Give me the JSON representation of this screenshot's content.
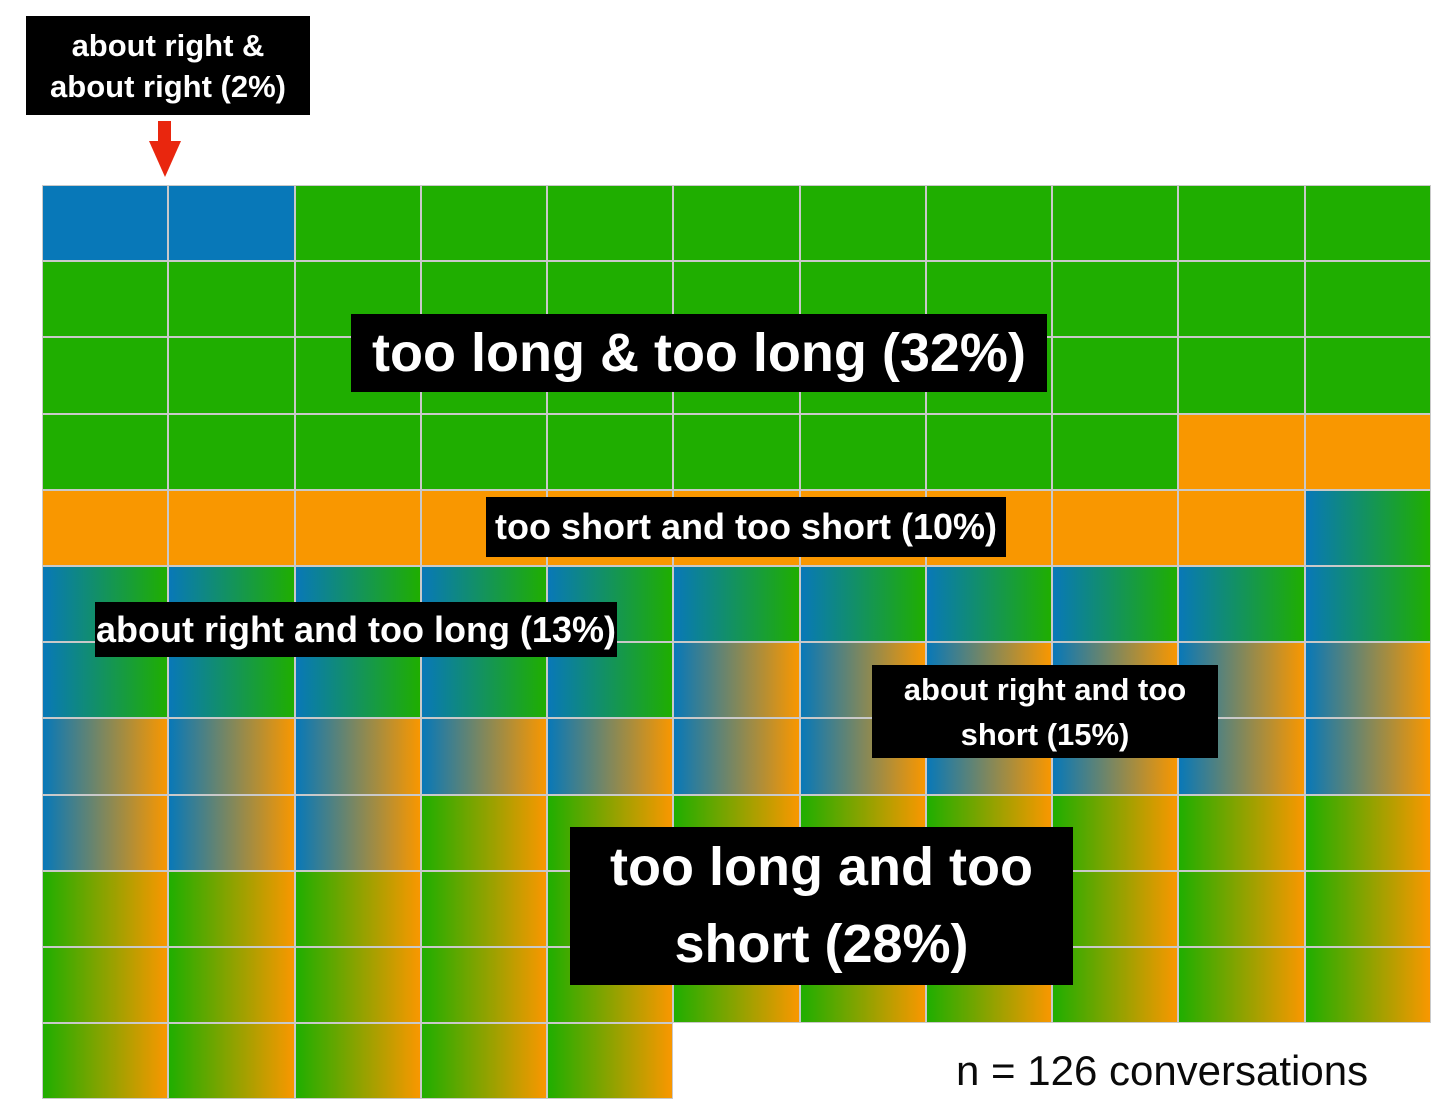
{
  "annotations": {
    "about_right_about_right": "about right &\nabout right (2%)",
    "too_long_too_long": "too long & too long (32%)",
    "too_short_too_short": "too short and too short (10%)",
    "about_right_too_long": "about right and too long (13%)",
    "about_right_too_short": "about right and too\nshort (15%)",
    "too_long_too_short": "too long and too\nshort (28%)",
    "sample_note": "n = 126 conversations"
  },
  "colors": {
    "blue": "#0878b8",
    "green": "#1fae00",
    "orange": "#f99700",
    "arrow_red": "#e9260e",
    "gridline": "#c9c9c9",
    "label_bg": "#000000",
    "label_text": "#ffffff"
  },
  "chart_data": {
    "type": "waffle",
    "title": "",
    "note": "n = 126 conversations",
    "total_units": 126,
    "unit": "conversations",
    "grid": {
      "columns": 11,
      "rows": 12,
      "cells_in_last_row": 5,
      "fill_order": "row-major-left-to-right-top-to-bottom"
    },
    "categories": [
      {
        "id": "about-right-about-right",
        "label": "about right & about right (2%)",
        "percent": 2,
        "cells": 2,
        "color": "#0878b8",
        "gradient": null
      },
      {
        "id": "too-long-too-long",
        "label": "too long & too long (32%)",
        "percent": 32,
        "cells": 40,
        "color": "#1fae00",
        "gradient": null
      },
      {
        "id": "too-short-too-short",
        "label": "too short and too short (10%)",
        "percent": 10,
        "cells": 12,
        "color": "#f99700",
        "gradient": null
      },
      {
        "id": "about-right-too-long",
        "label": "about right and too long (13%)",
        "percent": 13,
        "cells": 17,
        "color": null,
        "gradient": [
          "#0878b8",
          "#1fae00"
        ]
      },
      {
        "id": "about-right-too-short",
        "label": "about right and too short (15%)",
        "percent": 15,
        "cells": 20,
        "color": null,
        "gradient": [
          "#0878b8",
          "#f99700"
        ]
      },
      {
        "id": "too-long-too-short",
        "label": "too long and too short (28%)",
        "percent": 28,
        "cells": 35,
        "color": null,
        "gradient": [
          "#1fae00",
          "#f99700"
        ]
      }
    ]
  }
}
